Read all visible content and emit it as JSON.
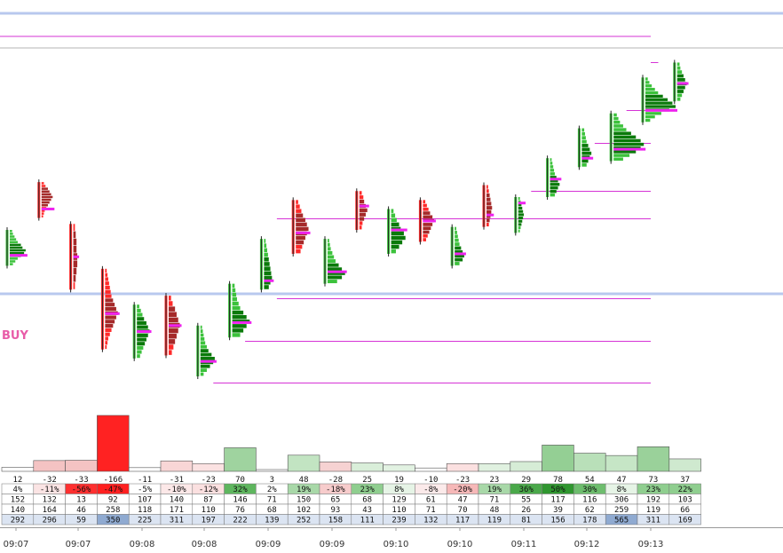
{
  "chart_data": {
    "type": "footprint",
    "annotation": "BUY",
    "time_labels": [
      "09:07",
      "09:07",
      "09:08",
      "09:08",
      "09:09",
      "09:09",
      "09:10",
      "09:10",
      "09:11",
      "09:12",
      "09:13"
    ],
    "colors": {
      "bull_dark": "#0a7a0a",
      "bull_light": "#3cc23c",
      "bear_dark": "#a52a2a",
      "bear_light": "#ff2a2a",
      "poc": "#ee22ee",
      "level_line": "#d633d6",
      "hline_blue": "#b8c8ee",
      "hline_gray": "#b4b4b4"
    },
    "price_axis": {
      "min": 0,
      "max": 100
    },
    "candles": [
      {
        "dir": "up",
        "high": 58,
        "low": 46,
        "poc": 49.5,
        "profile": [
          3,
          4,
          6,
          8,
          10,
          14,
          16,
          20,
          18,
          14,
          10,
          7,
          4
        ]
      },
      {
        "dir": "down",
        "high": 74,
        "low": 62,
        "poc": 65,
        "profile": [
          3,
          5,
          8,
          10,
          12,
          14,
          12,
          10,
          8,
          6,
          4,
          3,
          2
        ]
      },
      {
        "dir": "down",
        "high": 60,
        "low": 38,
        "poc": 49,
        "profile": [
          2,
          3,
          4,
          4,
          5,
          5,
          4,
          3,
          2
        ]
      },
      {
        "dir": "down",
        "high": 45,
        "low": 18,
        "poc": 30,
        "profile": [
          2,
          3,
          4,
          5,
          6,
          7,
          8,
          10,
          12,
          14,
          16,
          14,
          12,
          10,
          8,
          6,
          4,
          3,
          2
        ]
      },
      {
        "dir": "up",
        "high": 33,
        "low": 15,
        "poc": 24,
        "profile": [
          3,
          5,
          7,
          9,
          12,
          14,
          16,
          14,
          12,
          10,
          8,
          6,
          4
        ]
      },
      {
        "dir": "down",
        "high": 36,
        "low": 16,
        "poc": 26,
        "profile": [
          3,
          5,
          8,
          10,
          12,
          14,
          12,
          10,
          8,
          6,
          4
        ]
      },
      {
        "dir": "up",
        "high": 26,
        "low": 9,
        "poc": 14,
        "profile": [
          2,
          3,
          4,
          5,
          6,
          8,
          10,
          14,
          18,
          16,
          12,
          8,
          4
        ]
      },
      {
        "dir": "up",
        "high": 40,
        "low": 22,
        "poc": 27,
        "profile": [
          3,
          4,
          5,
          6,
          8,
          10,
          14,
          18,
          22,
          18,
          14,
          10
        ]
      },
      {
        "dir": "up",
        "high": 55,
        "low": 38,
        "poc": 41,
        "profile": [
          2,
          3,
          4,
          5,
          6,
          7,
          8,
          9,
          10,
          8,
          6
        ]
      },
      {
        "dir": "down",
        "high": 68,
        "low": 50,
        "poc": 57,
        "profile": [
          3,
          5,
          7,
          9,
          12,
          14,
          16,
          14,
          12,
          10,
          8,
          6
        ]
      },
      {
        "dir": "up",
        "high": 55,
        "low": 40,
        "poc": 44,
        "profile": [
          2,
          3,
          4,
          6,
          8,
          10,
          14,
          18,
          22,
          18,
          12
        ]
      },
      {
        "dir": "down",
        "high": 71,
        "low": 58,
        "poc": 66,
        "profile": [
          3,
          5,
          6,
          8,
          10,
          8,
          6,
          4,
          3
        ]
      },
      {
        "dir": "up",
        "high": 65,
        "low": 50,
        "poc": 58,
        "profile": [
          3,
          5,
          7,
          10,
          12,
          16,
          18,
          14,
          10,
          6
        ]
      },
      {
        "dir": "down",
        "high": 68,
        "low": 54,
        "poc": 61,
        "profile": [
          3,
          5,
          7,
          9,
          12,
          14,
          12,
          10,
          8,
          6,
          4
        ]
      },
      {
        "dir": "up",
        "high": 59,
        "low": 46,
        "poc": 50,
        "profile": [
          2,
          3,
          4,
          5,
          6,
          8,
          10,
          12,
          10,
          6
        ]
      },
      {
        "dir": "down",
        "high": 73,
        "low": 59,
        "poc": 63,
        "profile": [
          2,
          3,
          4,
          5,
          6,
          7,
          6,
          5,
          4,
          3
        ]
      },
      {
        "dir": "up",
        "high": 69,
        "low": 57,
        "poc": 67,
        "profile": [
          2,
          3,
          4,
          5,
          6,
          7,
          6,
          5,
          4,
          3,
          2
        ]
      },
      {
        "dir": "up",
        "high": 82,
        "low": 69,
        "poc": 75,
        "profile": [
          2,
          3,
          4,
          5,
          6,
          8,
          10,
          12,
          10,
          8,
          6
        ]
      },
      {
        "dir": "up",
        "high": 92,
        "low": 79,
        "poc": 82,
        "profile": [
          3,
          4,
          5,
          6,
          8,
          10,
          12,
          10,
          8,
          6
        ]
      },
      {
        "dir": "up",
        "high": 97,
        "low": 81,
        "poc": 85,
        "profile": [
          4,
          6,
          8,
          12,
          16,
          22,
          28,
          34,
          38,
          34,
          28,
          20,
          12
        ]
      },
      {
        "dir": "up",
        "high": 109,
        "low": 94,
        "poc": 98,
        "profile": [
          3,
          5,
          8,
          12,
          16,
          22,
          28,
          34,
          38,
          30,
          20,
          12,
          6
        ]
      },
      {
        "dir": "up",
        "high": 114,
        "low": 101,
        "poc": 107,
        "profile": [
          3,
          4,
          6,
          8,
          10,
          12,
          10,
          8,
          6,
          4
        ]
      }
    ],
    "level_lines": [
      {
        "price": 62,
        "start_col": 8,
        "end": "right"
      },
      {
        "price": 35,
        "start_col": 8,
        "end": "right"
      },
      {
        "price": 21,
        "start_col": 7,
        "end": "right"
      },
      {
        "price": 7,
        "start_col": 6,
        "end": "right"
      },
      {
        "price": 71,
        "start_col": 16,
        "end": "right"
      },
      {
        "price": 87,
        "start_col": 18,
        "end": "right"
      },
      {
        "price": 98,
        "start_col": 19,
        "end": "right"
      },
      {
        "price": 114,
        "start_col": 20,
        "end": "right"
      }
    ],
    "delta_bars": [
      {
        "value": 12,
        "color": "#ffffff"
      },
      {
        "value": -32,
        "color": "#f4c3c3"
      },
      {
        "value": -33,
        "color": "#f4c3c3"
      },
      {
        "value": -166,
        "color": "#ff2222"
      },
      {
        "value": -11,
        "color": "#ffffff"
      },
      {
        "value": -31,
        "color": "#f8d6d6"
      },
      {
        "value": -23,
        "color": "#fbe2e2"
      },
      {
        "value": 70,
        "color": "#9fd39f"
      },
      {
        "value": 3,
        "color": "#ffffff"
      },
      {
        "value": 48,
        "color": "#c2e4c2"
      },
      {
        "value": -28,
        "color": "#f6d2d2"
      },
      {
        "value": 25,
        "color": "#d9eed9"
      },
      {
        "value": 19,
        "color": "#e2f2e2"
      },
      {
        "value": -10,
        "color": "#ffffff"
      },
      {
        "value": -23,
        "color": "#fbe0e0"
      },
      {
        "value": 23,
        "color": "#e0f1e0"
      },
      {
        "value": 29,
        "color": "#d6ecd6"
      },
      {
        "value": 78,
        "color": "#94cf94"
      },
      {
        "value": 54,
        "color": "#b9e0b9"
      },
      {
        "value": 47,
        "color": "#c6e6c6"
      },
      {
        "value": 73,
        "color": "#9ad19a"
      },
      {
        "value": 37,
        "color": "#cfe9cf"
      }
    ],
    "table": {
      "rows": [
        {
          "cells": [
            "4%",
            "-11%",
            "-56%",
            "-47%",
            "-5%",
            "-10%",
            "-12%",
            "32%",
            "2%",
            "19%",
            "-18%",
            "23%",
            "8%",
            "-8%",
            "-20%",
            "19%",
            "36%",
            "50%",
            "30%",
            "8%",
            "23%",
            "22%"
          ],
          "colors": [
            "#ffffff",
            "#fbe4e4",
            "#ff3030",
            "#ff2020",
            "#ffffff",
            "#fce8e8",
            "#fbe0e0",
            "#5eb65e",
            "#ffffff",
            "#a8d8a8",
            "#f7cccc",
            "#8fce8f",
            "#e6f4e6",
            "#fbeaea",
            "#f6b8b8",
            "#a8d8a8",
            "#4aa84a",
            "#2f962f",
            "#6dbd6d",
            "#e6f4e6",
            "#8fce8f",
            "#8fce8f"
          ]
        },
        {
          "cells": [
            "152",
            "132",
            "13",
            "92",
            "107",
            "140",
            "87",
            "146",
            "71",
            "150",
            "65",
            "68",
            "129",
            "61",
            "47",
            "71",
            "55",
            "117",
            "116",
            "306",
            "192",
            "103"
          ]
        },
        {
          "cells": [
            "140",
            "164",
            "46",
            "258",
            "118",
            "171",
            "110",
            "76",
            "68",
            "102",
            "93",
            "43",
            "110",
            "71",
            "70",
            "48",
            "26",
            "39",
            "62",
            "259",
            "119",
            "66"
          ]
        },
        {
          "cells": [
            "292",
            "296",
            "59",
            "350",
            "225",
            "311",
            "197",
            "222",
            "139",
            "252",
            "158",
            "111",
            "239",
            "132",
            "117",
            "119",
            "81",
            "156",
            "178",
            "565",
            "311",
            "169"
          ]
        }
      ]
    }
  }
}
